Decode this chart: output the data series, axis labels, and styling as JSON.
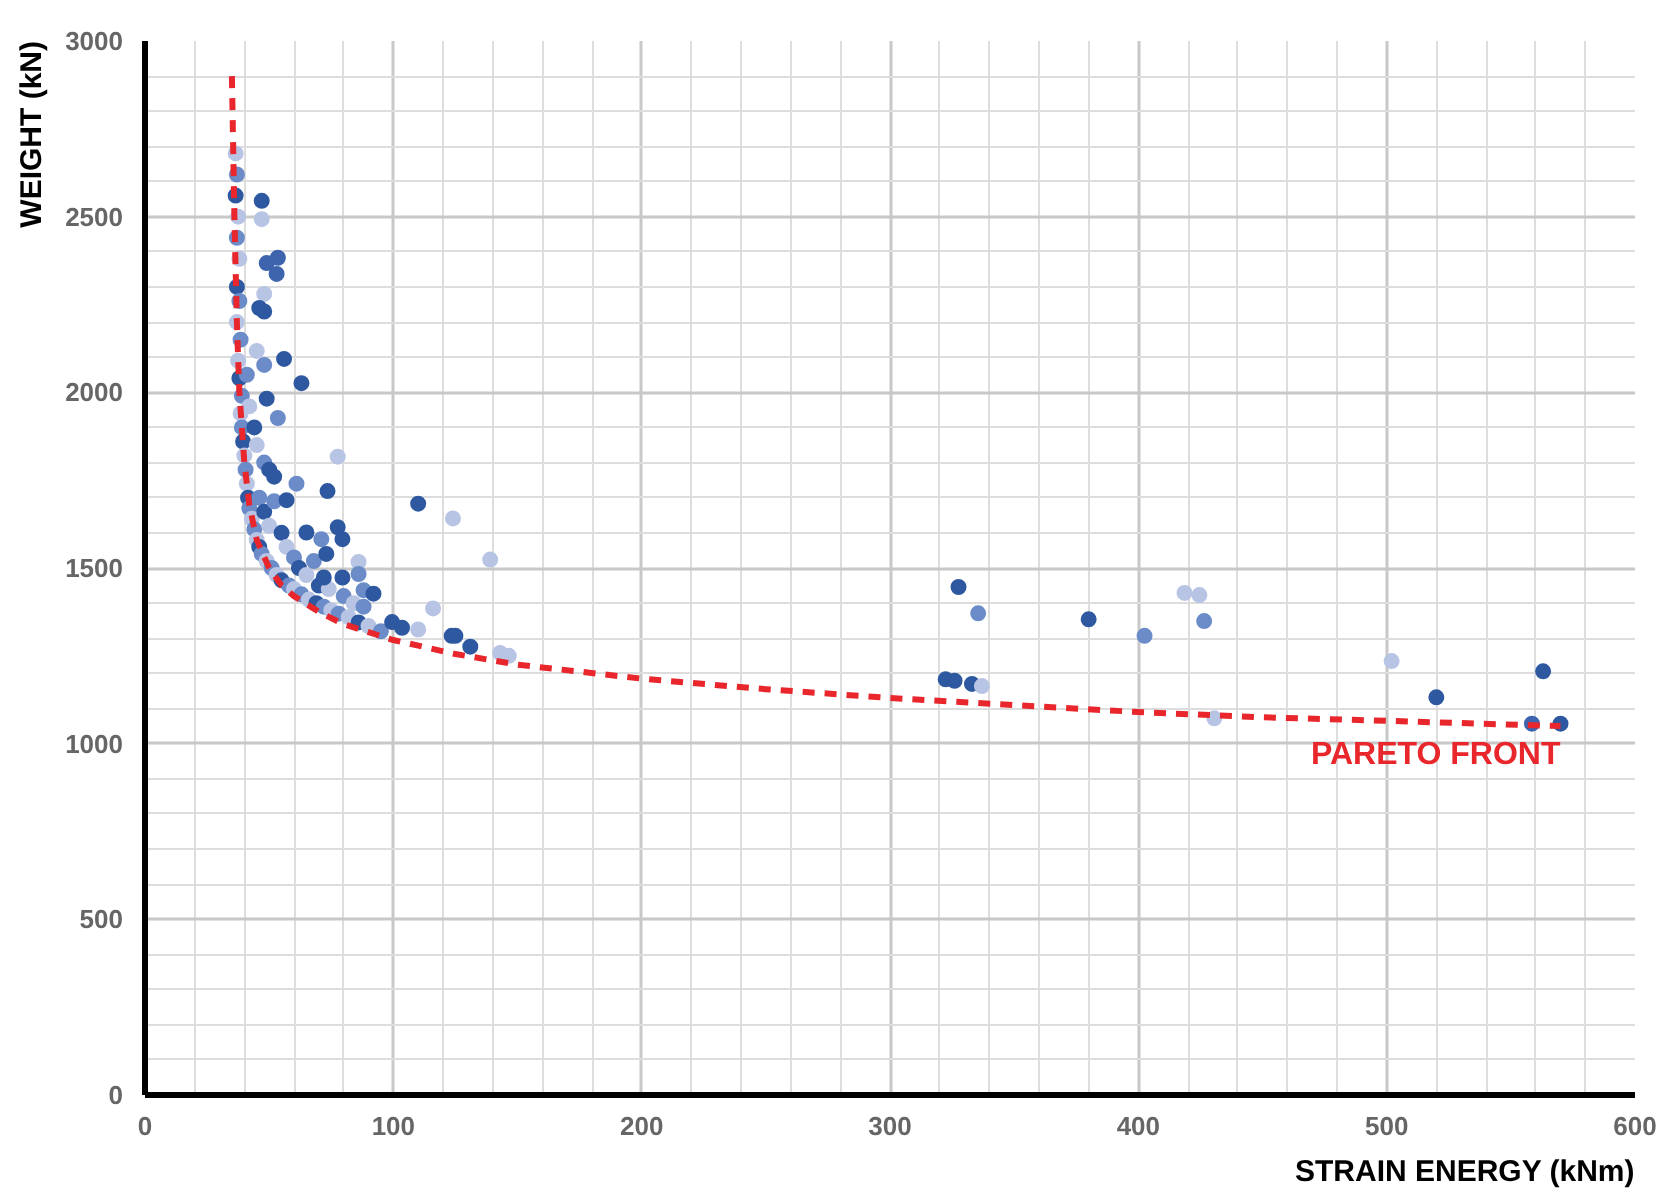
{
  "chart_data": {
    "type": "scatter",
    "xlabel": "STRAIN ENERGY (kNm)",
    "ylabel": "WEIGHT (kN)",
    "xlim": [
      0,
      600
    ],
    "ylim": [
      0,
      3000
    ],
    "xticks": [
      0,
      100,
      200,
      300,
      400,
      500,
      600
    ],
    "yticks": [
      0,
      500,
      1000,
      1500,
      2000,
      2500,
      3000
    ],
    "grid": true,
    "marker": "circle",
    "series": [
      {
        "x": [
          36.5,
          37,
          36.5,
          37.5,
          37,
          38,
          37,
          38,
          37,
          38.5,
          37.5,
          38,
          39,
          38.5,
          39,
          39.5,
          40,
          40.5,
          41,
          41.5,
          42,
          43,
          44,
          45,
          46,
          47,
          49,
          51,
          53,
          55,
          58,
          60,
          63,
          66,
          69,
          72,
          75,
          78,
          82,
          86,
          90,
          95,
          46,
          48,
          50,
          52,
          55,
          57,
          60,
          62,
          65,
          68,
          70,
          74,
          80,
          84,
          88,
          45,
          48,
          44,
          42,
          41,
          47,
          47,
          49,
          53.5,
          53,
          48,
          46,
          48,
          45,
          48,
          56,
          63,
          49,
          53.5,
          77.6,
          73.5,
          110,
          124,
          139,
          50,
          52,
          61,
          57,
          65,
          77.6,
          79.5,
          71,
          73,
          86,
          86,
          79.5,
          72,
          88,
          92,
          116,
          99.5,
          103.5,
          110,
          123.5,
          125,
          131,
          143,
          146.5,
          327.6,
          335.5,
          380,
          402.5,
          418.6,
          424.6,
          426.5,
          322.4,
          326,
          333,
          337,
          430.6,
          502,
          520,
          563,
          558.5,
          570
        ],
        "values": [
          2680,
          2620,
          2560,
          2500,
          2440,
          2380,
          2300,
          2260,
          2200,
          2150,
          2090,
          2040,
          1990,
          1940,
          1900,
          1860,
          1820,
          1780,
          1740,
          1700,
          1670,
          1640,
          1610,
          1580,
          1560,
          1540,
          1520,
          1500,
          1480,
          1465,
          1450,
          1440,
          1425,
          1410,
          1400,
          1390,
          1380,
          1370,
          1360,
          1345,
          1335,
          1320,
          1700,
          1660,
          1620,
          1690,
          1600,
          1560,
          1530,
          1500,
          1480,
          1520,
          1450,
          1440,
          1420,
          1400,
          1390,
          1850,
          1800,
          1900,
          1960,
          2050,
          2545,
          2493,
          2368,
          2383,
          2337,
          2280,
          2240,
          2230,
          2118,
          2078,
          2095,
          2026,
          1982,
          1927,
          1817,
          1719,
          1683,
          1641,
          1524,
          1780,
          1760,
          1740,
          1693,
          1601,
          1616,
          1582,
          1582,
          1540,
          1517,
          1483,
          1473,
          1473,
          1437,
          1427,
          1385,
          1346,
          1330,
          1325,
          1307,
          1307,
          1276,
          1258,
          1250,
          1446,
          1371,
          1354,
          1307,
          1429,
          1423,
          1349,
          1183,
          1179,
          1170,
          1164,
          1072,
          1235,
          1132,
          1206,
          1057,
          1057
        ],
        "colors": [
          "#b8c4e4",
          "#6b8cc8",
          "#2e58a0",
          "#b8c4e4",
          "#6b8cc8",
          "#b8c4e4",
          "#2e58a0",
          "#6b8cc8",
          "#b8c4e4",
          "#6b8cc8",
          "#b8c4e4",
          "#2e58a0",
          "#6b8cc8",
          "#b8c4e4",
          "#6b8cc8",
          "#2e58a0",
          "#b8c4e4",
          "#6b8cc8",
          "#b8c4e4",
          "#2e58a0",
          "#6b8cc8",
          "#b8c4e4",
          "#6b8cc8",
          "#b8c4e4",
          "#2e58a0",
          "#6b8cc8",
          "#b8c4e4",
          "#6b8cc8",
          "#b8c4e4",
          "#2e58a0",
          "#6b8cc8",
          "#b8c4e4",
          "#6b8cc8",
          "#b8c4e4",
          "#2e58a0",
          "#6b8cc8",
          "#b8c4e4",
          "#6b8cc8",
          "#b8c4e4",
          "#2e58a0",
          "#b8c4e4",
          "#6b8cc8",
          "#6b8cc8",
          "#2e58a0",
          "#b8c4e4",
          "#6b8cc8",
          "#2e58a0",
          "#b8c4e4",
          "#6b8cc8",
          "#2e58a0",
          "#b8c4e4",
          "#6b8cc8",
          "#2e58a0",
          "#b8c4e4",
          "#6b8cc8",
          "#b8c4e4",
          "#6b8cc8",
          "#b8c4e4",
          "#6b8cc8",
          "#2e58a0",
          "#b8c4e4",
          "#6b8cc8",
          "#2e58a0",
          "#b8c4e4",
          "#3d64ad",
          "#3d64ad",
          "#3d64ad",
          "#b8c4e4",
          "#2e58a0",
          "#2e58a0",
          "#b8c4e4",
          "#6b8cc8",
          "#2e58a0",
          "#2e58a0",
          "#2e58a0",
          "#6b8cc8",
          "#b8c4e4",
          "#2e58a0",
          "#2e58a0",
          "#b8c4e4",
          "#b8c4e4",
          "#2e58a0",
          "#2e58a0",
          "#6b8cc8",
          "#2e58a0",
          "#2e58a0",
          "#2e58a0",
          "#2e58a0",
          "#6b8cc8",
          "#2e58a0",
          "#b8c4e4",
          "#6b8cc8",
          "#2e58a0",
          "#2e58a0",
          "#6b8cc8",
          "#2e58a0",
          "#b8c4e4",
          "#2e58a0",
          "#2e58a0",
          "#b8c4e4",
          "#2e58a0",
          "#2e58a0",
          "#2e58a0",
          "#b8c4e4",
          "#b8c4e4",
          "#2e58a0",
          "#6b8cc8",
          "#2e58a0",
          "#6b8cc8",
          "#b8c4e4",
          "#b8c4e4",
          "#6b8cc8",
          "#2e58a0",
          "#2e58a0",
          "#2e58a0",
          "#b8c4e4",
          "#b8c4e4",
          "#b8c4e4",
          "#2e58a0",
          "#2e58a0",
          "#3d64ad",
          "#2e58a0"
        ]
      },
      {
        "type": "line",
        "name": "PARETO FRONT",
        "color": "#e8262b",
        "line_style": "dashed",
        "marker": "none",
        "x": [
          35,
          36,
          37,
          38,
          40,
          42,
          45,
          50,
          55,
          60,
          70,
          80,
          100,
          125,
          150,
          200,
          250,
          300,
          350,
          400,
          450,
          500,
          570
        ],
        "values": [
          2900,
          2500,
          2200,
          2000,
          1800,
          1680,
          1580,
          1500,
          1450,
          1420,
          1375,
          1340,
          1295,
          1255,
          1225,
          1185,
          1155,
          1130,
          1110,
          1090,
          1075,
          1065,
          1050
        ]
      }
    ]
  }
}
